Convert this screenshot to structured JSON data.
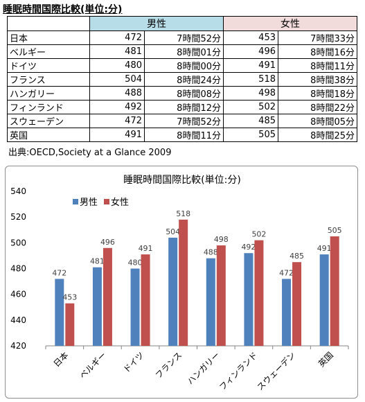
{
  "table": {
    "title": "睡眠時間国際比較(単位:分)",
    "male_header": "男性",
    "female_header": "女性",
    "rows": [
      {
        "country": "日本",
        "male_min": "472",
        "male_hm": "7時間52分",
        "female_min": "453",
        "female_hm": "7時間33分"
      },
      {
        "country": "ベルギー",
        "male_min": "481",
        "male_hm": "8時間01分",
        "female_min": "496",
        "female_hm": "8時間16分"
      },
      {
        "country": "ドイツ",
        "male_min": "480",
        "male_hm": "8時間00分",
        "female_min": "491",
        "female_hm": "8時間11分"
      },
      {
        "country": "フランス",
        "male_min": "504",
        "male_hm": "8時間24分",
        "female_min": "518",
        "female_hm": "8時間38分"
      },
      {
        "country": "ハンガリー",
        "male_min": "488",
        "male_hm": "8時間08分",
        "female_min": "498",
        "female_hm": "8時間18分"
      },
      {
        "country": "フィンランド",
        "male_min": "492",
        "male_hm": "8時間12分",
        "female_min": "502",
        "female_hm": "8時間22分"
      },
      {
        "country": "スウェーデン",
        "male_min": "472",
        "male_hm": "7時間52分",
        "female_min": "485",
        "female_hm": "8時間05分"
      },
      {
        "country": "英国",
        "male_min": "491",
        "male_hm": "8時間11分",
        "female_min": "505",
        "female_hm": "8時間25分"
      }
    ],
    "source": "出典:OECD,Society at a Glance 2009"
  },
  "chart_data": {
    "type": "bar",
    "title": "睡眠時間国際比較(単位:分)",
    "xlabel": "",
    "ylabel": "",
    "categories": [
      "日本",
      "ベルギー",
      "ドイツ",
      "フランス",
      "ハンガリー",
      "フィンランド",
      "スウェーデン",
      "英国"
    ],
    "series": [
      {
        "name": "男性",
        "color": "#4f81bd",
        "values": [
          472,
          481,
          480,
          504,
          488,
          492,
          472,
          491
        ]
      },
      {
        "name": "女性",
        "color": "#c0504d",
        "values": [
          453,
          496,
          491,
          518,
          498,
          502,
          485,
          505
        ]
      }
    ],
    "ylim": [
      420,
      540
    ],
    "yticks": [
      420,
      440,
      460,
      480,
      500,
      520,
      540
    ],
    "grid": false,
    "legend_position": "top-left",
    "data_labels": true
  }
}
